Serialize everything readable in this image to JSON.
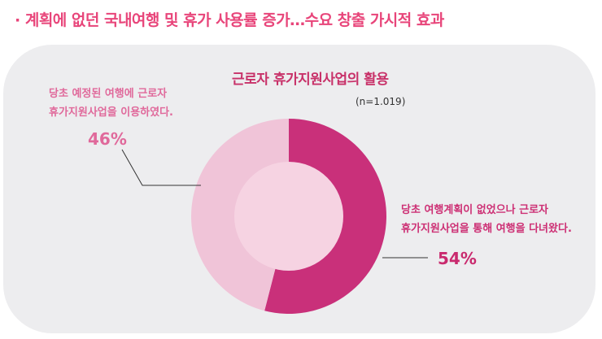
{
  "headline": "· 계획에 없던 국내여행 및 휴가 사용률 증가…수요 창출 가시적 효과",
  "chart_data": {
    "type": "pie",
    "title": "근로자 휴가지원사업의 활용",
    "sample_note": "(n=1.019)",
    "slices": [
      {
        "label": "당초 여행계획이 없었으나 근로자 휴가지원사업을 통해 여행을 다녀왔다.",
        "label_lines": [
          "당초 여행계획이 없었으나 근로자",
          "휴가지원사업을 통해 여행을 다녀왔다."
        ],
        "value": 54,
        "value_label": "54%",
        "color": "#c9307a"
      },
      {
        "label": "당초 예정된 여행에 근로자 휴가지원사업을 이용하였다.",
        "label_lines": [
          "당초 예정된 여행에 근로자",
          "휴가지원사업을 이용하였다."
        ],
        "value": 46,
        "value_label": "46%",
        "color": "#f0c4d8"
      }
    ],
    "center_color": "#f6d3e2",
    "leader_color": "#333333"
  }
}
